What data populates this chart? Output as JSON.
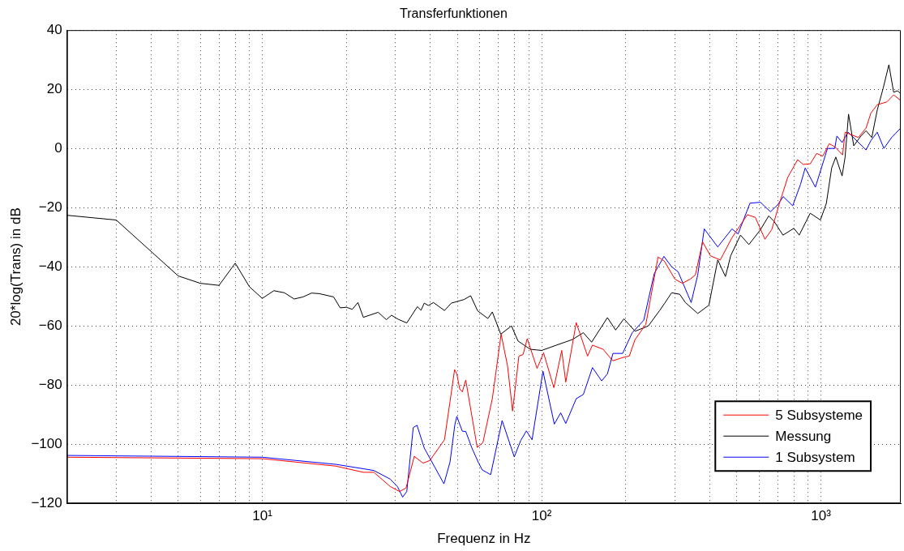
{
  "chart_data": {
    "type": "line",
    "title": "Transferfunktionen",
    "xlabel": "Frequenz in Hz",
    "ylabel": "20*log(Trans) in dB",
    "log": "x",
    "grid": true,
    "legend": "bottom right",
    "xlim": [
      2,
      1930
    ],
    "xticks": [
      {
        "value": 2,
        "label": null
      },
      {
        "value": 3,
        "label": null
      },
      {
        "value": 4,
        "label": null
      },
      {
        "value": 5,
        "label": null
      },
      {
        "value": 6,
        "label": null
      },
      {
        "value": 7,
        "label": null
      },
      {
        "value": 8,
        "label": null
      },
      {
        "value": 9,
        "label": null
      },
      {
        "value": 10,
        "label": "10¹"
      },
      {
        "value": 20,
        "label": null
      },
      {
        "value": 30,
        "label": null
      },
      {
        "value": 40,
        "label": null
      },
      {
        "value": 50,
        "label": null
      },
      {
        "value": 60,
        "label": null
      },
      {
        "value": 70,
        "label": null
      },
      {
        "value": 80,
        "label": null
      },
      {
        "value": 90,
        "label": null
      },
      {
        "value": 100,
        "label": "10²"
      },
      {
        "value": 200,
        "label": null
      },
      {
        "value": 300,
        "label": null
      },
      {
        "value": 400,
        "label": null
      },
      {
        "value": 500,
        "label": null
      },
      {
        "value": 600,
        "label": null
      },
      {
        "value": 700,
        "label": null
      },
      {
        "value": 800,
        "label": null
      },
      {
        "value": 900,
        "label": null
      },
      {
        "value": 1000,
        "label": "10³"
      }
    ],
    "ylim": [
      -120,
      40
    ],
    "yticks": [
      -120,
      -100,
      -80,
      -60,
      -40,
      -20,
      0,
      20,
      40
    ],
    "series": [
      {
        "name": "5 Subsysteme",
        "color": "#ff0000",
        "x": [
          2,
          10,
          18.3,
          23,
          25.1,
          28.7,
          31,
          32.7,
          35,
          37.6,
          39.8,
          44.9,
          48.8,
          49.7,
          50.9,
          52,
          53.5,
          58.8,
          61.6,
          66.6,
          71.6,
          75.5,
          78.7,
          82.9,
          85.8,
          88.8,
          96.3,
          101.6,
          110.6,
          118,
          122,
          133,
          146,
          152,
          166,
          179.8,
          195,
          206,
          216,
          236,
          245,
          261,
          275,
          300,
          319,
          340,
          355,
          377,
          402,
          436,
          480,
          545,
          582,
          630,
          666,
          710,
          760,
          825,
          863,
          915,
          965,
          1015,
          1070,
          1120,
          1195,
          1220,
          1360,
          1450,
          1510,
          1590,
          1720,
          1820,
          1930
        ],
        "values": [
          -104.4,
          -104.9,
          -107.4,
          -109.5,
          -109.5,
          -114.3,
          -116,
          -114.8,
          -104.1,
          -106.4,
          -105.5,
          -98.5,
          -74.8,
          -76.2,
          -81.3,
          -82.3,
          -78.3,
          -101.1,
          -99.5,
          -84.6,
          -62.8,
          -73.5,
          -88.8,
          -70.2,
          -69.7,
          -64.3,
          -74.4,
          -69.1,
          -80.9,
          -68.3,
          -79,
          -58.9,
          -70.2,
          -66.5,
          -67.9,
          -71.8,
          -70.7,
          -70.2,
          -64.6,
          -59.5,
          -51.1,
          -36.7,
          -38.1,
          -44.2,
          -45.6,
          -44.2,
          -42.8,
          -31.6,
          -36.3,
          -37.7,
          -30.2,
          -22.4,
          -23.3,
          -30.7,
          -27.5,
          -18.6,
          -9.8,
          -3.8,
          -5.4,
          -5.2,
          -1.7,
          -2.6,
          1.6,
          0.6,
          -2.2,
          5.5,
          3.7,
          6.9,
          12,
          14.8,
          15.7,
          18.1,
          16.2
        ]
      },
      {
        "name": "Messung",
        "color": "#000000",
        "x": [
          2,
          3,
          5,
          6,
          7,
          8,
          9,
          10,
          11,
          12,
          13,
          14,
          15,
          16,
          18,
          19,
          20,
          21,
          22,
          23,
          26,
          27.8,
          29,
          30.7,
          32.9,
          35.9,
          37,
          38,
          39.3,
          41,
          44.9,
          47.5,
          52.7,
          55.7,
          59,
          64.2,
          66.6,
          71.4,
          78,
          82.3,
          91,
          100,
          113,
          129,
          141,
          151,
          172,
          184,
          197,
          216,
          241,
          264,
          275,
          292,
          312,
          327,
          362,
          397,
          427,
          455,
          475,
          515,
          552,
          607,
          650,
          680,
          731,
          800,
          836,
          915,
          995,
          1045,
          1092,
          1130,
          1190,
          1220,
          1255,
          1310,
          1390,
          1450,
          1520,
          1590,
          1670,
          1750,
          1820,
          1880,
          1930
        ],
        "values": [
          -22.6,
          -24.2,
          -43.1,
          -45.6,
          -46.3,
          -38.8,
          -46.8,
          -50.7,
          -48.1,
          -48.8,
          -50.9,
          -50.2,
          -48.9,
          -49.1,
          -50.2,
          -53.9,
          -53.7,
          -54.4,
          -52.1,
          -57.1,
          -55.4,
          -57.9,
          -56.4,
          -57.8,
          -59,
          -53.5,
          -54.7,
          -52.3,
          -53.1,
          -52.1,
          -54.8,
          -52.3,
          -51.1,
          -49.8,
          -54.9,
          -57.5,
          -55.3,
          -62.8,
          -60,
          -65.1,
          -67.9,
          -68.3,
          -66.5,
          -64.6,
          -62.3,
          -65.5,
          -57.2,
          -61.4,
          -57.6,
          -61.8,
          -60,
          -54.9,
          -52.5,
          -48.8,
          -49.3,
          -52.1,
          -55.8,
          -53,
          -37.7,
          -43.3,
          -36.3,
          -29.3,
          -32.5,
          -27.5,
          -22.8,
          -24.7,
          -29.3,
          -27,
          -29.3,
          -21.9,
          -24.2,
          -18.6,
          -6.6,
          -2.9,
          -9.3,
          -2.9,
          11.6,
          0.9,
          4.2,
          6,
          3.7,
          13,
          20.4,
          28.3,
          19,
          19.5,
          18.5
        ]
      },
      {
        "name": "1 Subsystem",
        "color": "#0000ff",
        "x": [
          2,
          10,
          18.3,
          23,
          25.1,
          28.7,
          30.5,
          31.8,
          32.9,
          34.7,
          35.8,
          38,
          44.7,
          47,
          48.9,
          49.7,
          52,
          53.5,
          56.3,
          59.5,
          61.3,
          65.7,
          72.2,
          79.8,
          84.2,
          88.2,
          92.4,
          101.1,
          111,
          117,
          122,
          133,
          141,
          152,
          164,
          172,
          180,
          195,
          211,
          232,
          253,
          274,
          292,
          308,
          343,
          362,
          382,
          427,
          480,
          505,
          557,
          607,
          659,
          699,
          733,
          792,
          845,
          878,
          955,
          1055,
          1120,
          1140,
          1190,
          1250,
          1450,
          1510,
          1590,
          1680,
          1790,
          1930
        ],
        "values": [
          -103.8,
          -104.4,
          -106.8,
          -108.3,
          -108.9,
          -111.8,
          -114.4,
          -117.9,
          -116,
          -94.4,
          -93.6,
          -101.3,
          -113.4,
          -106,
          -93.4,
          -90.6,
          -95.6,
          -95.7,
          -101.3,
          -106.4,
          -108.7,
          -110.3,
          -92,
          -104.3,
          -98.7,
          -95.5,
          -98.5,
          -75.3,
          -93.2,
          -89.4,
          -93,
          -84.6,
          -83.2,
          -74.1,
          -78.6,
          -76.2,
          -69.3,
          -69.3,
          -62.3,
          -58.1,
          -42.3,
          -36.5,
          -40,
          -41.7,
          -52.1,
          -42.8,
          -27.2,
          -33.3,
          -27.2,
          -28.9,
          -18.5,
          -18.2,
          -21.4,
          -19.1,
          -16.3,
          -19.4,
          -12.1,
          -6.6,
          -13.1,
          0,
          0,
          4.2,
          2,
          5.5,
          -0.5,
          2.7,
          5.5,
          0,
          3.7,
          6.9
        ]
      }
    ]
  }
}
